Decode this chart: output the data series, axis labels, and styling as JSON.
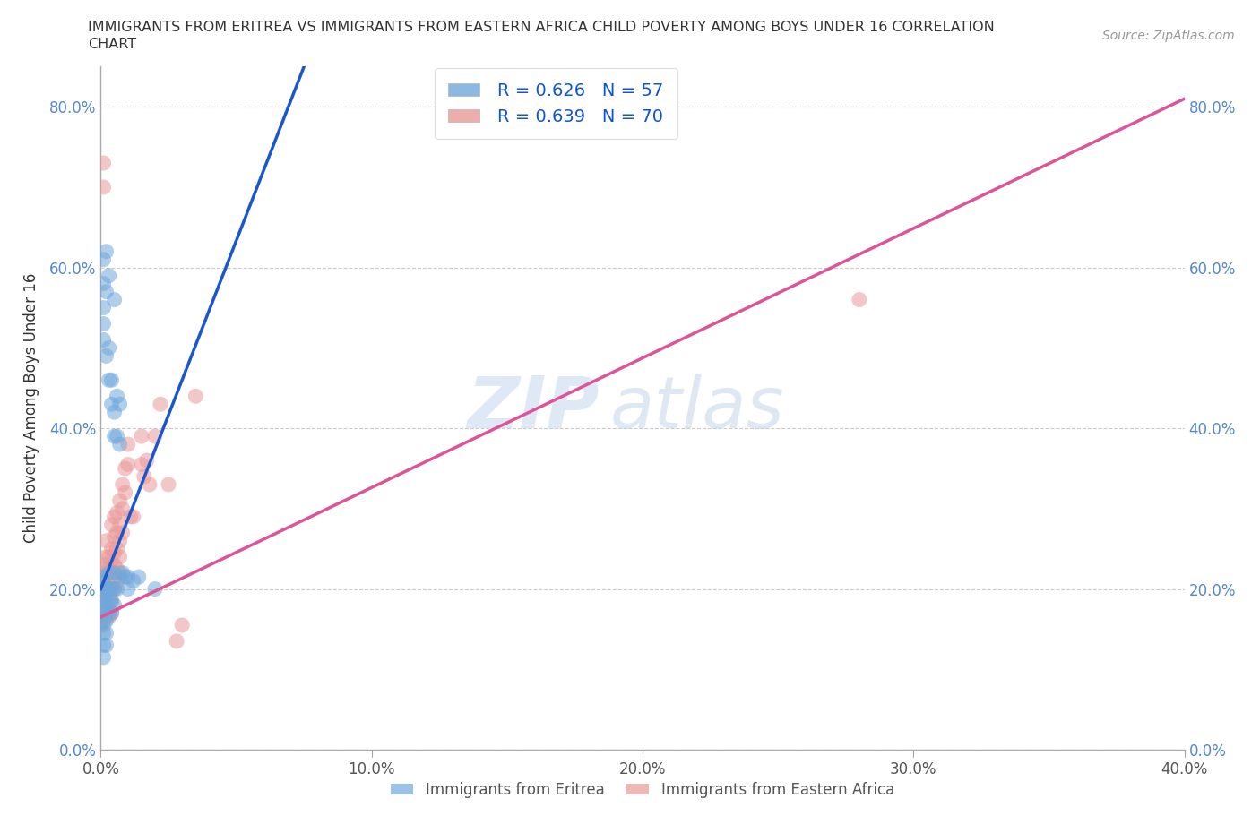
{
  "title": "IMMIGRANTS FROM ERITREA VS IMMIGRANTS FROM EASTERN AFRICA CHILD POVERTY AMONG BOYS UNDER 16 CORRELATION\nCHART",
  "source": "Source: ZipAtlas.com",
  "ylabel": "Child Poverty Among Boys Under 16",
  "xmin": 0.0,
  "xmax": 0.4,
  "ymin": 0.0,
  "ymax": 0.85,
  "yticks": [
    0.0,
    0.2,
    0.4,
    0.6,
    0.8
  ],
  "xticks": [
    0.0,
    0.1,
    0.2,
    0.3,
    0.4
  ],
  "blue_color": "#6fa8dc",
  "pink_color": "#ea9999",
  "blue_line_color": "#1a56cc",
  "pink_line_color": "#dd5599",
  "watermark_zip": "ZIP",
  "watermark_atlas": "atlas",
  "legend_label_blue": "Immigrants from Eritrea",
  "legend_label_pink": "Immigrants from Eastern Africa",
  "R_blue": 0.626,
  "N_blue": 57,
  "R_pink": 0.639,
  "N_pink": 70,
  "blue_scatter": [
    [
      0.0,
      0.215
    ],
    [
      0.0,
      0.2
    ],
    [
      0.0,
      0.185
    ],
    [
      0.0,
      0.17
    ],
    [
      0.0,
      0.155
    ],
    [
      0.001,
      0.61
    ],
    [
      0.001,
      0.58
    ],
    [
      0.001,
      0.55
    ],
    [
      0.001,
      0.53
    ],
    [
      0.001,
      0.51
    ],
    [
      0.001,
      0.21
    ],
    [
      0.001,
      0.19
    ],
    [
      0.001,
      0.175
    ],
    [
      0.001,
      0.16
    ],
    [
      0.001,
      0.145
    ],
    [
      0.001,
      0.13
    ],
    [
      0.001,
      0.115
    ],
    [
      0.002,
      0.62
    ],
    [
      0.002,
      0.57
    ],
    [
      0.002,
      0.49
    ],
    [
      0.002,
      0.2
    ],
    [
      0.002,
      0.185
    ],
    [
      0.002,
      0.175
    ],
    [
      0.002,
      0.16
    ],
    [
      0.002,
      0.145
    ],
    [
      0.002,
      0.13
    ],
    [
      0.003,
      0.59
    ],
    [
      0.003,
      0.5
    ],
    [
      0.003,
      0.46
    ],
    [
      0.003,
      0.22
    ],
    [
      0.003,
      0.2
    ],
    [
      0.003,
      0.185
    ],
    [
      0.003,
      0.17
    ],
    [
      0.004,
      0.46
    ],
    [
      0.004,
      0.43
    ],
    [
      0.004,
      0.2
    ],
    [
      0.004,
      0.185
    ],
    [
      0.004,
      0.17
    ],
    [
      0.005,
      0.56
    ],
    [
      0.005,
      0.42
    ],
    [
      0.005,
      0.39
    ],
    [
      0.005,
      0.22
    ],
    [
      0.005,
      0.2
    ],
    [
      0.005,
      0.18
    ],
    [
      0.006,
      0.44
    ],
    [
      0.006,
      0.39
    ],
    [
      0.006,
      0.2
    ],
    [
      0.007,
      0.43
    ],
    [
      0.007,
      0.38
    ],
    [
      0.007,
      0.215
    ],
    [
      0.008,
      0.22
    ],
    [
      0.009,
      0.215
    ],
    [
      0.01,
      0.215
    ],
    [
      0.01,
      0.2
    ],
    [
      0.012,
      0.21
    ],
    [
      0.014,
      0.215
    ],
    [
      0.02,
      0.2
    ]
  ],
  "pink_scatter": [
    [
      0.0,
      0.215
    ],
    [
      0.0,
      0.2
    ],
    [
      0.001,
      0.73
    ],
    [
      0.001,
      0.7
    ],
    [
      0.001,
      0.23
    ],
    [
      0.001,
      0.215
    ],
    [
      0.001,
      0.2
    ],
    [
      0.001,
      0.185
    ],
    [
      0.001,
      0.175
    ],
    [
      0.001,
      0.165
    ],
    [
      0.001,
      0.155
    ],
    [
      0.002,
      0.26
    ],
    [
      0.002,
      0.24
    ],
    [
      0.002,
      0.225
    ],
    [
      0.002,
      0.215
    ],
    [
      0.002,
      0.2
    ],
    [
      0.002,
      0.185
    ],
    [
      0.002,
      0.175
    ],
    [
      0.002,
      0.165
    ],
    [
      0.003,
      0.24
    ],
    [
      0.003,
      0.225
    ],
    [
      0.003,
      0.215
    ],
    [
      0.003,
      0.2
    ],
    [
      0.003,
      0.185
    ],
    [
      0.003,
      0.175
    ],
    [
      0.003,
      0.165
    ],
    [
      0.004,
      0.28
    ],
    [
      0.004,
      0.25
    ],
    [
      0.004,
      0.235
    ],
    [
      0.004,
      0.22
    ],
    [
      0.004,
      0.2
    ],
    [
      0.004,
      0.185
    ],
    [
      0.004,
      0.17
    ],
    [
      0.005,
      0.29
    ],
    [
      0.005,
      0.265
    ],
    [
      0.005,
      0.245
    ],
    [
      0.005,
      0.23
    ],
    [
      0.005,
      0.215
    ],
    [
      0.005,
      0.2
    ],
    [
      0.006,
      0.295
    ],
    [
      0.006,
      0.27
    ],
    [
      0.006,
      0.25
    ],
    [
      0.006,
      0.225
    ],
    [
      0.006,
      0.21
    ],
    [
      0.007,
      0.31
    ],
    [
      0.007,
      0.28
    ],
    [
      0.007,
      0.26
    ],
    [
      0.007,
      0.24
    ],
    [
      0.007,
      0.22
    ],
    [
      0.008,
      0.33
    ],
    [
      0.008,
      0.3
    ],
    [
      0.008,
      0.27
    ],
    [
      0.009,
      0.35
    ],
    [
      0.009,
      0.32
    ],
    [
      0.01,
      0.38
    ],
    [
      0.01,
      0.355
    ],
    [
      0.011,
      0.29
    ],
    [
      0.012,
      0.29
    ],
    [
      0.015,
      0.39
    ],
    [
      0.015,
      0.355
    ],
    [
      0.016,
      0.34
    ],
    [
      0.017,
      0.36
    ],
    [
      0.018,
      0.33
    ],
    [
      0.02,
      0.39
    ],
    [
      0.022,
      0.43
    ],
    [
      0.025,
      0.33
    ],
    [
      0.028,
      0.135
    ],
    [
      0.03,
      0.155
    ],
    [
      0.035,
      0.44
    ],
    [
      0.28,
      0.56
    ]
  ],
  "blue_line": [
    [
      0.0,
      0.2
    ],
    [
      0.075,
      0.85
    ]
  ],
  "pink_line": [
    [
      0.0,
      0.165
    ],
    [
      0.4,
      0.81
    ]
  ]
}
